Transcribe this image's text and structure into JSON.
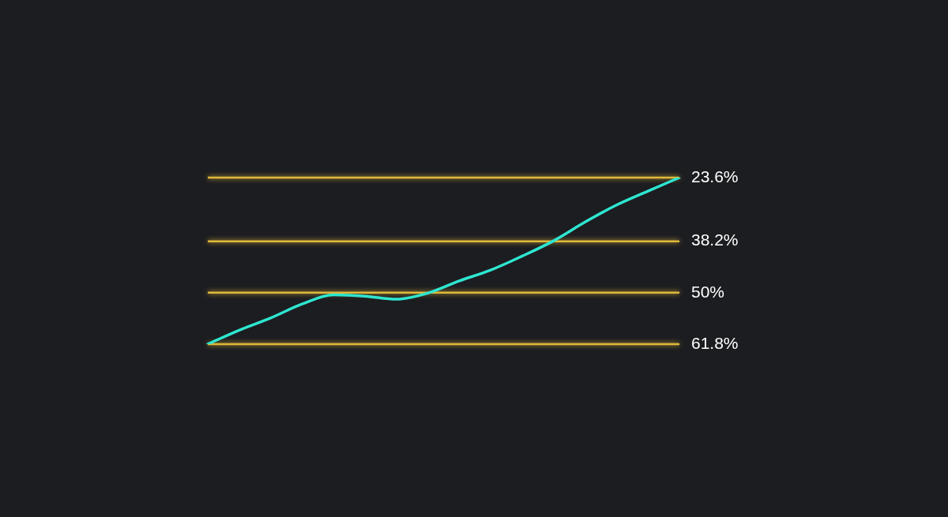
{
  "chart_data": {
    "type": "line",
    "categories": [
      null,
      null,
      null,
      null,
      null,
      null,
      null,
      null,
      null,
      null,
      null,
      null,
      null,
      null,
      null,
      null
    ],
    "ylim": [
      61.8,
      23.6
    ],
    "tick_labels": false,
    "series": [
      {
        "color": "#2ee6d0",
        "values": [
          61.8,
          58.6,
          55.8,
          52.6,
          50.5,
          50.8,
          51.5,
          50.1,
          47.3,
          44.8,
          41.6,
          38.1,
          33.8,
          29.9,
          26.7,
          23.6
        ]
      }
    ],
    "ref_lines": [
      {
        "axis": "y",
        "value": 23.6,
        "label": "23.6%",
        "color": "#e0b83a"
      },
      {
        "axis": "y",
        "value": 38.2,
        "label": "38.2%",
        "color": "#e0b83a"
      },
      {
        "axis": "y",
        "value": 50,
        "label": "50%",
        "color": "#e0b83a"
      },
      {
        "axis": "y",
        "value": 61.8,
        "label": "61.8%",
        "color": "#e0b83a"
      }
    ],
    "grid": false,
    "legend": false,
    "marker": "none",
    "line_style": "solid"
  }
}
